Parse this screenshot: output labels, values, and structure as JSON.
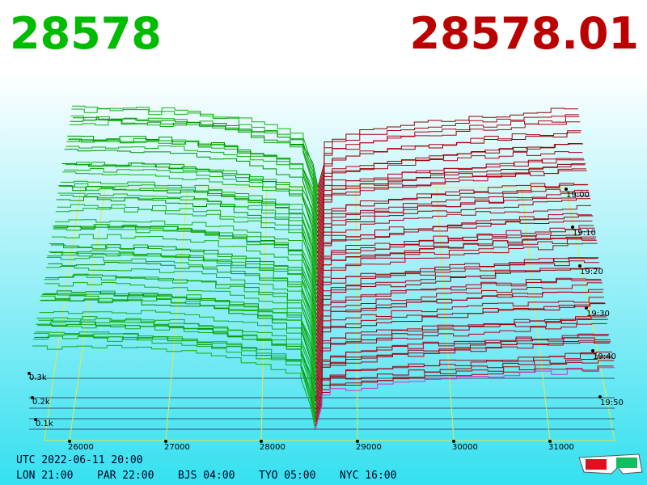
{
  "header": {
    "bid": "28578",
    "ask": "28578.01"
  },
  "price_ticks": [
    "26000",
    "27000",
    "28000",
    "29000",
    "30000",
    "31000"
  ],
  "time_ticks": [
    "19:00",
    "19:10",
    "19:20",
    "19:30",
    "19:40",
    "19:50"
  ],
  "depth_ticks": [
    "0.3k",
    "0.2k",
    "0.1k"
  ],
  "footer": {
    "utc": "UTC 2022-06-11 20:00",
    "zones": [
      "LON 21:00",
      "PAR 22:00",
      "BJS 04:00",
      "TYO 05:00",
      "NYC 16:00"
    ]
  }
}
